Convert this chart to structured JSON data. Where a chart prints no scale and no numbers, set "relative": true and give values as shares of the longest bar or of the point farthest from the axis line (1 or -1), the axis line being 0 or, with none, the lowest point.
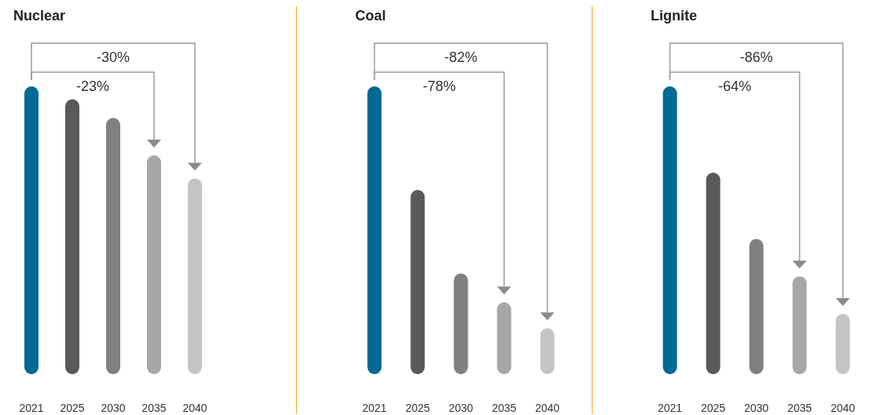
{
  "chart_data": [
    {
      "type": "bar",
      "title": "Nuclear",
      "relative": true,
      "categories": [
        "2021",
        "2025",
        "2030",
        "2035",
        "2040"
      ],
      "values": [
        1,
        0.955,
        0.89,
        0.76,
        0.68
      ],
      "colors": [
        "#006994",
        "#58595b",
        "#808083",
        "#a7a7aa",
        "#c4c4c6"
      ],
      "annotations": [
        "-30%",
        "-23%"
      ]
    },
    {
      "type": "bar",
      "title": "Coal",
      "relative": true,
      "categories": [
        "2021",
        "2025",
        "2030",
        "2035",
        "2040"
      ],
      "values": [
        1,
        0.64,
        0.35,
        0.25,
        0.16
      ],
      "colors": [
        "#006994",
        "#58595b",
        "#808083",
        "#a7a7aa",
        "#c4c4c6"
      ],
      "annotations": [
        "-82%",
        "-78%"
      ]
    },
    {
      "type": "bar",
      "title": "Lignite",
      "relative": true,
      "categories": [
        "2021",
        "2025",
        "2030",
        "2035",
        "2040"
      ],
      "values": [
        1,
        0.7,
        0.47,
        0.34,
        0.21
      ],
      "colors": [
        "#006994",
        "#58595b",
        "#808083",
        "#a7a7aa",
        "#c4c4c6"
      ],
      "annotations": [
        "-86%",
        "-64%"
      ]
    }
  ]
}
